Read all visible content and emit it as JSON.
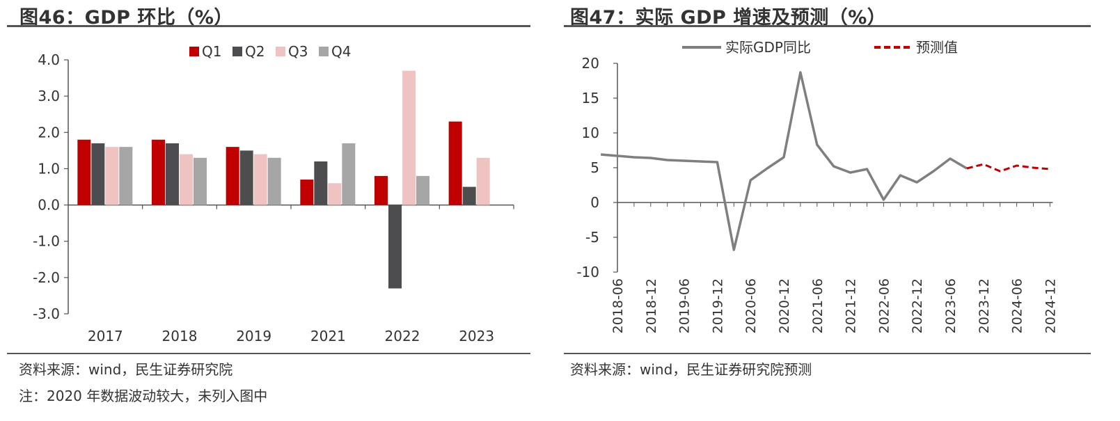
{
  "left": {
    "title": "图46：GDP 环比（%）",
    "source": "资料来源：wind，民生证券研究院",
    "note": "注：2020 年数据波动较大，未列入图中",
    "chart_data": {
      "type": "bar",
      "categories": [
        "2017",
        "2018",
        "2019",
        "2021",
        "2022",
        "2023"
      ],
      "series": [
        {
          "name": "Q1",
          "color": "#c00000",
          "values": [
            1.8,
            1.8,
            1.6,
            0.7,
            0.8,
            2.3
          ]
        },
        {
          "name": "Q2",
          "color": "#4d4d4f",
          "values": [
            1.7,
            1.7,
            1.5,
            1.2,
            -2.3,
            0.5
          ]
        },
        {
          "name": "Q3",
          "color": "#f0c3c3",
          "values": [
            1.6,
            1.4,
            1.4,
            0.6,
            3.7,
            1.3
          ]
        },
        {
          "name": "Q4",
          "color": "#a6a6a6",
          "values": [
            1.6,
            1.3,
            1.3,
            1.7,
            0.8,
            null
          ]
        }
      ],
      "ylim": [
        -3.0,
        4.0
      ],
      "yticks": [
        "4.0",
        "3.0",
        "2.0",
        "1.0",
        "0.0",
        "-1.0",
        "-2.0",
        "-3.0"
      ],
      "legend": "top-center",
      "grid": false
    }
  },
  "right": {
    "title": "图47：实际 GDP 增速及预测（%）",
    "source": "资料来源：wind，民生证券研究院预测",
    "chart_data": {
      "type": "line",
      "xticks": [
        "2018-06",
        "2018-12",
        "2019-06",
        "2019-12",
        "2020-06",
        "2020-12",
        "2021-06",
        "2021-12",
        "2022-06",
        "2022-12",
        "2023-06",
        "2023-12",
        "2024-06",
        "2024-12"
      ],
      "series": [
        {
          "name": "实际GDP同比",
          "color": "#7f7f7f",
          "style": "solid",
          "x": [
            "2018-03",
            "2018-06",
            "2018-09",
            "2018-12",
            "2019-03",
            "2019-06",
            "2019-09",
            "2019-12",
            "2020-03",
            "2020-06",
            "2020-09",
            "2020-12",
            "2021-03",
            "2021-06",
            "2021-09",
            "2021-12",
            "2022-03",
            "2022-06",
            "2022-09",
            "2022-12",
            "2023-03",
            "2023-06",
            "2023-09"
          ],
          "y": [
            6.9,
            6.7,
            6.5,
            6.4,
            6.1,
            6.0,
            5.9,
            5.8,
            -6.8,
            3.2,
            4.9,
            6.5,
            18.7,
            8.3,
            5.2,
            4.3,
            4.8,
            0.4,
            3.9,
            2.9,
            4.5,
            6.3,
            4.9
          ]
        },
        {
          "name": "预测值",
          "color": "#c00000",
          "style": "dashed",
          "x": [
            "2023-09",
            "2023-12",
            "2024-03",
            "2024-06",
            "2024-09",
            "2024-12"
          ],
          "y": [
            4.9,
            5.5,
            4.5,
            5.3,
            5.0,
            4.8
          ]
        }
      ],
      "ylim": [
        -10,
        20
      ],
      "yticks": [
        "20",
        "15",
        "10",
        "5",
        "0",
        "-5",
        "-10"
      ],
      "legend": "top-center",
      "grid": false
    }
  }
}
